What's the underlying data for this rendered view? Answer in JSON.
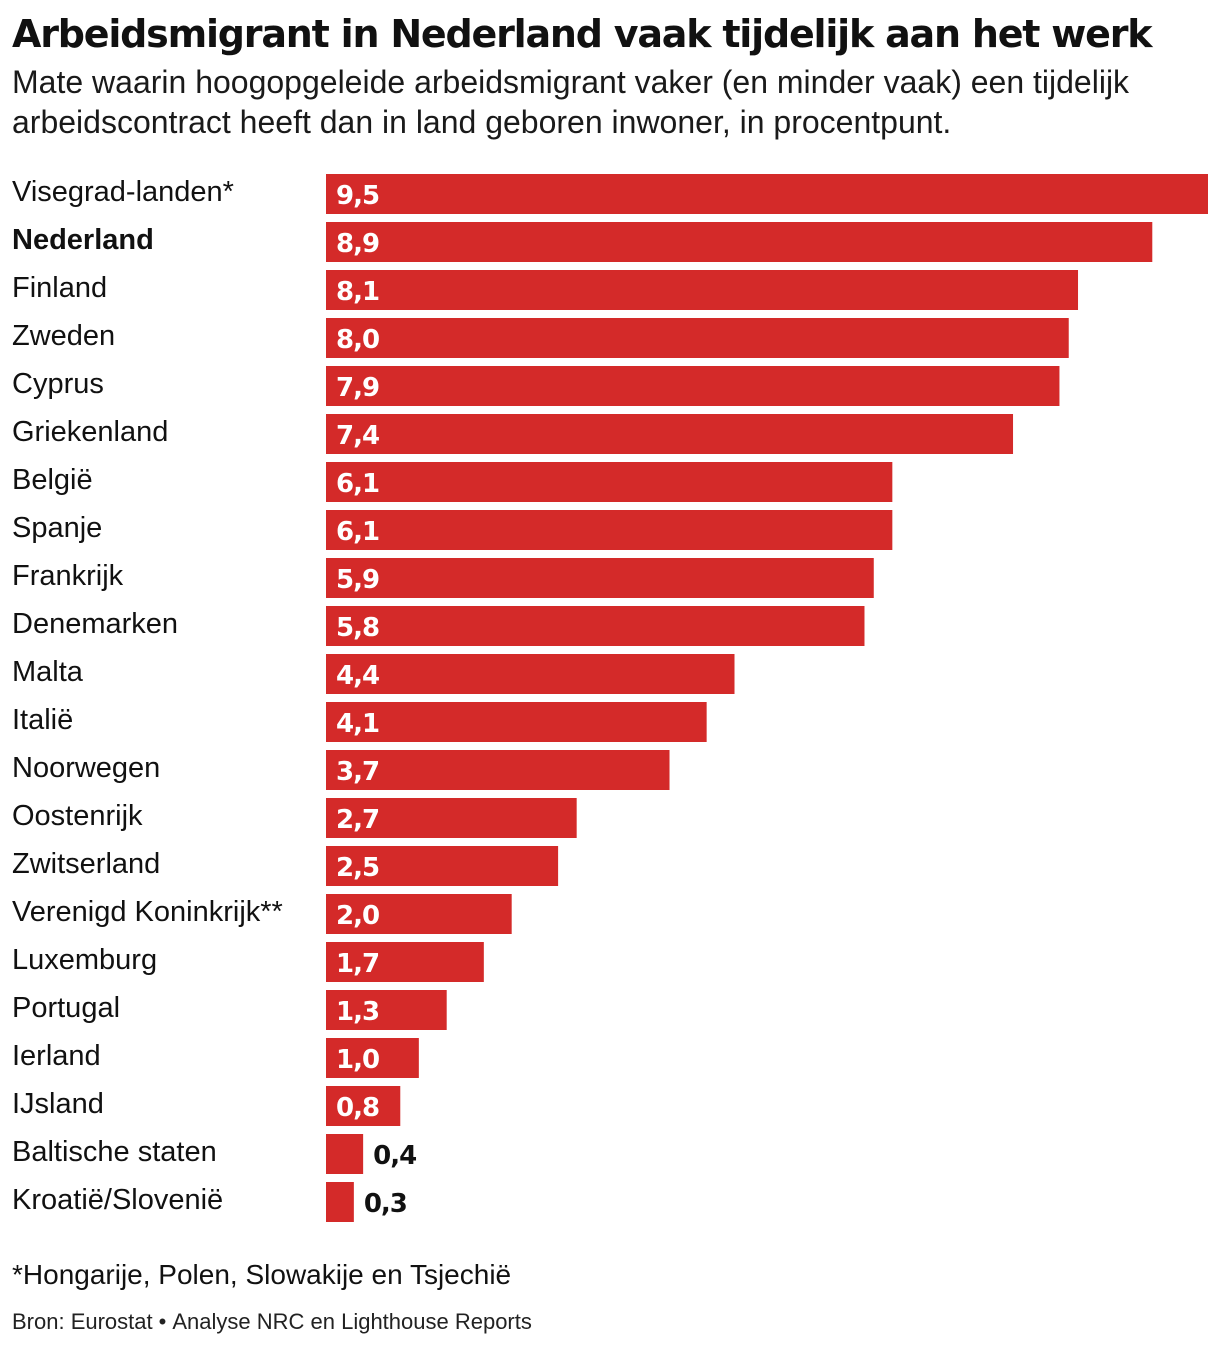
{
  "header": {
    "title": "Arbeidsmigrant in Nederland vaak tijdelijk aan het werk",
    "subtitle": "Mate waarin hoogopgeleide arbeidsmigrant vaker (en minder vaak) een tijdelijk arbeidscontract heeft dan in land geboren inwoner, in procentpunt."
  },
  "chart_data": {
    "type": "bar",
    "orientation": "horizontal",
    "title": "Arbeidsmigrant in Nederland vaak tijdelijk aan het werk",
    "xlabel": "",
    "ylabel": "",
    "xlim": [
      0,
      9.5
    ],
    "grid": false,
    "legend": "none",
    "bar_color": "#d42a29",
    "highlight": "Nederland",
    "categories": [
      "Visegrad-landen*",
      "Nederland",
      "Finland",
      "Zweden",
      "Cyprus",
      "Griekenland",
      "België",
      "Spanje",
      "Frankrijk",
      "Denemarken",
      "Malta",
      "Italië",
      "Noorwegen",
      "Oostenrijk",
      "Zwitserland",
      "Verenigd Koninkrijk**",
      "Luxemburg",
      "Portugal",
      "Ierland",
      "IJsland",
      "Baltische staten",
      "Kroatië/Slovenië"
    ],
    "values": [
      9.5,
      8.9,
      8.1,
      8.0,
      7.9,
      7.4,
      6.1,
      6.1,
      5.9,
      5.8,
      4.4,
      4.1,
      3.7,
      2.7,
      2.5,
      2.0,
      1.7,
      1.3,
      1.0,
      0.8,
      0.4,
      0.3
    ],
    "labels": [
      "9,5",
      "8,9",
      "8,1",
      "8,0",
      "7,9",
      "7,4",
      "6,1",
      "6,1",
      "5,9",
      "5,8",
      "4,4",
      "4,1",
      "3,7",
      "2,7",
      "2,5",
      "2,0",
      "1,7",
      "1,3",
      "1,0",
      "0,8",
      "0,4",
      "0,3"
    ]
  },
  "footer": {
    "footnote": "*Hongarije, Polen, Slowakije en Tsjechië",
    "source_primary": "Bron: Eurostat",
    "separator": "•",
    "source_secondary": "Analyse NRC en Lighthouse Reports"
  }
}
